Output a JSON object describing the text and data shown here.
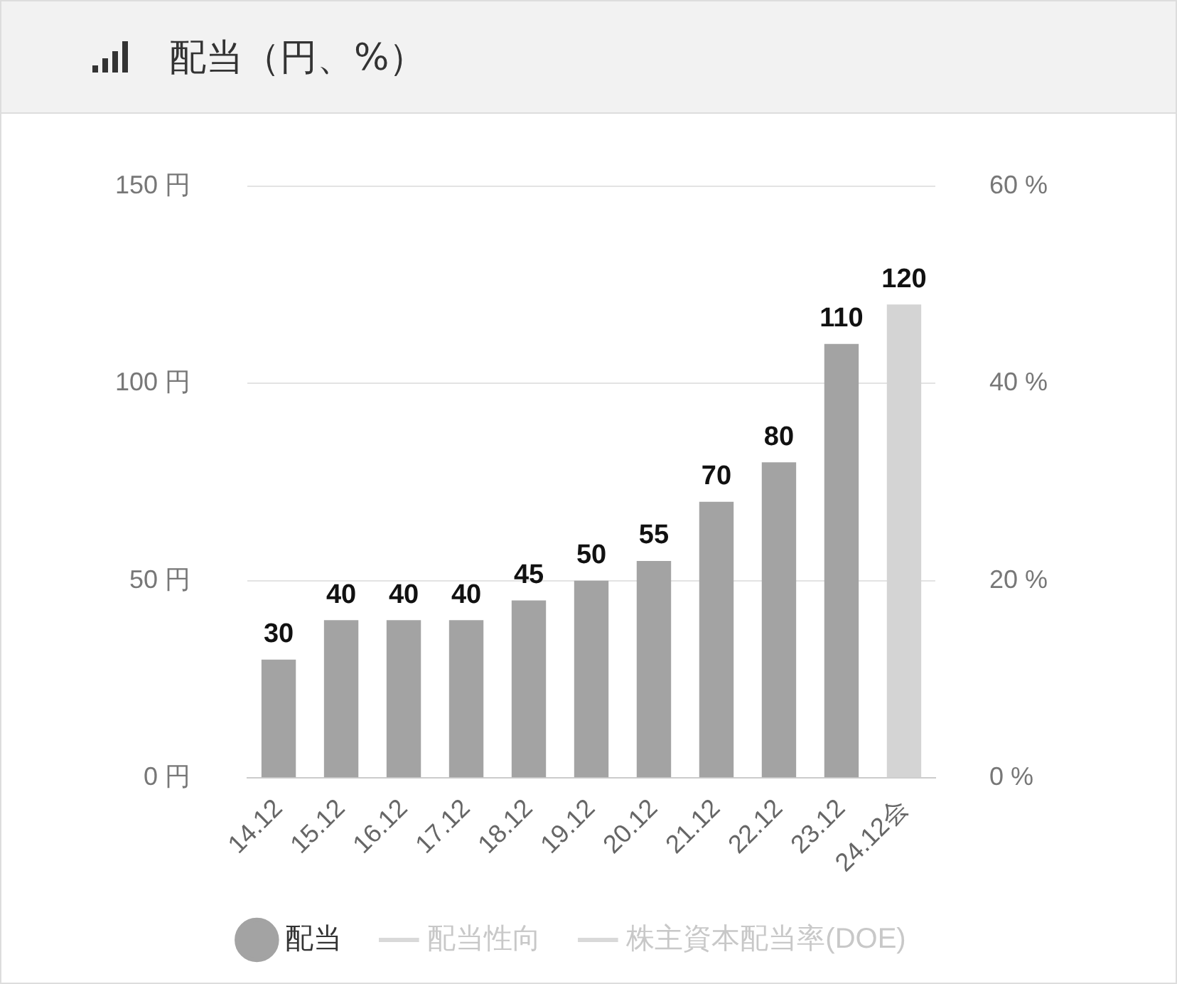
{
  "chart_data": {
    "type": "bar",
    "title": "配当（円、%）",
    "categories": [
      "14.12",
      "15.12",
      "16.12",
      "17.12",
      "18.12",
      "19.12",
      "20.12",
      "21.12",
      "22.12",
      "23.12",
      "24.12会"
    ],
    "series": [
      {
        "name": "配当",
        "color": "#a3a3a3",
        "colors": [
          "#a3a3a3",
          "#a3a3a3",
          "#a3a3a3",
          "#a3a3a3",
          "#a3a3a3",
          "#a3a3a3",
          "#a3a3a3",
          "#a3a3a3",
          "#a3a3a3",
          "#a3a3a3",
          "#d4d4d4"
        ],
        "values": [
          30,
          40,
          40,
          40,
          45,
          50,
          55,
          70,
          80,
          110,
          120
        ]
      },
      {
        "name": "配当性向",
        "type": "line",
        "color": "#d9d9d9",
        "values": [
          null,
          null,
          null,
          null,
          null,
          null,
          null,
          null,
          null,
          null,
          null
        ]
      },
      {
        "name": "株主資本配当率(DOE)",
        "type": "line",
        "color": "#d9d9d9",
        "values": [
          null,
          null,
          null,
          null,
          null,
          null,
          null,
          null,
          null,
          null,
          null
        ]
      }
    ],
    "ylim": [
      0,
      150
    ],
    "yticks": [
      {
        "value": 0,
        "label": "0 円"
      },
      {
        "value": 50,
        "label": "50 円"
      },
      {
        "value": 100,
        "label": "100 円"
      },
      {
        "value": 150,
        "label": "150 円"
      }
    ],
    "y2lim": [
      0,
      60
    ],
    "y2ticks": [
      {
        "value": 0,
        "label": "0 %"
      },
      {
        "value": 20,
        "label": "20 %"
      },
      {
        "value": 40,
        "label": "40 %"
      },
      {
        "value": 60,
        "label": "60 %"
      }
    ],
    "grid": "y",
    "legend": "bottom",
    "data_labels": true
  }
}
